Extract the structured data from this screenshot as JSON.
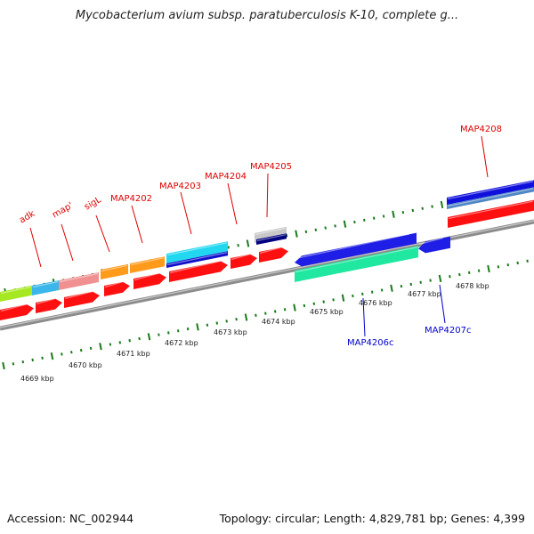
{
  "title": "Mycobacterium avium subsp. paratuberculosis K-10, complete g...",
  "footer": {
    "accession": "Accession: NC_002944",
    "topology": "Topology: circular; Length: 4,829,781 bp; Genes: 4,399"
  },
  "colors": {
    "forward_label": "#dd0000",
    "reverse_label": "#0000cc",
    "tick": "#1a7a1a",
    "backbone": "#8c8c8c",
    "cds": "#ff1010"
  },
  "ticks": [
    {
      "label": "4669 kbp"
    },
    {
      "label": "4670 kbp"
    },
    {
      "label": "4671 kbp"
    },
    {
      "label": "4672 kbp"
    },
    {
      "label": "4673 kbp"
    },
    {
      "label": "4674 kbp"
    },
    {
      "label": "4675 kbp"
    },
    {
      "label": "4676 kbp"
    },
    {
      "label": "4677 kbp"
    },
    {
      "label": "4678 kbp"
    }
  ],
  "genes_forward": [
    {
      "name": "adk"
    },
    {
      "name": "map'"
    },
    {
      "name": "sigL"
    },
    {
      "name": "MAP4202"
    },
    {
      "name": "MAP4203"
    },
    {
      "name": "MAP4204"
    },
    {
      "name": "MAP4205"
    },
    {
      "name": "MAP4208"
    }
  ],
  "genes_reverse": [
    {
      "name": "MAP4206c"
    },
    {
      "name": "MAP4207c"
    }
  ]
}
